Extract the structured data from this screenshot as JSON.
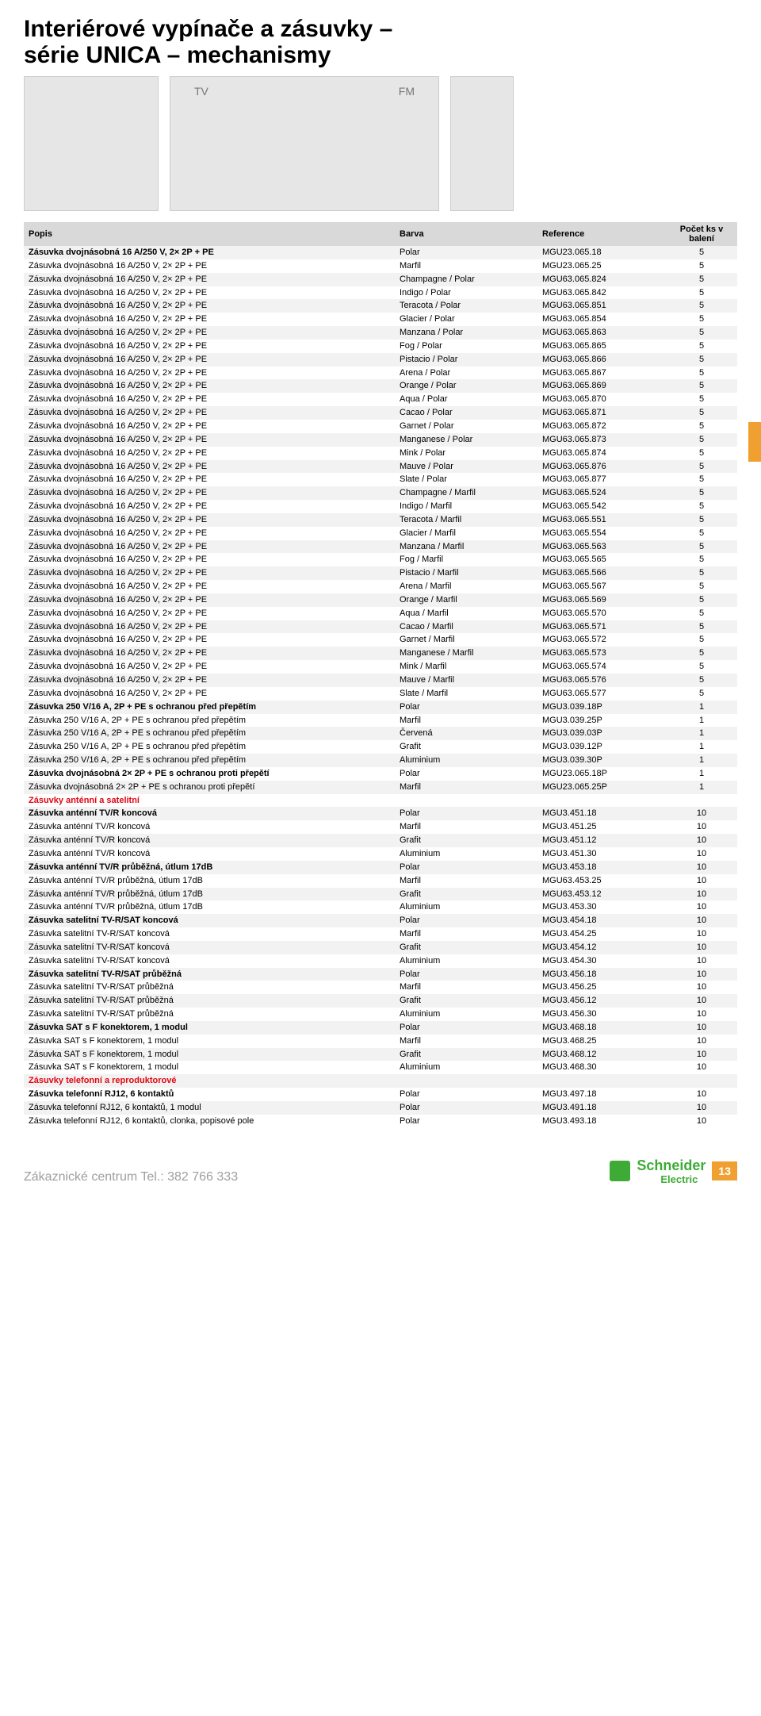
{
  "title_line1": "Interiérové vypínače a zásuvky –",
  "title_line2": "série UNICA – mechanismy",
  "img_labels": {
    "tv": "TV",
    "fm": "FM"
  },
  "table": {
    "headers": {
      "popis": "Popis",
      "barva": "Barva",
      "reference": "Reference",
      "ks": "Počet ks v balení"
    },
    "rows": [
      {
        "p": "Zásuvka dvojnásobná 16 A/250 V, 2× 2P + PE",
        "b": "Polar",
        "r": "MGU23.065.18",
        "k": "5",
        "bold": true
      },
      {
        "p": "Zásuvka dvojnásobná 16 A/250 V, 2× 2P + PE",
        "b": "Marfil",
        "r": "MGU23.065.25",
        "k": "5"
      },
      {
        "p": "Zásuvka dvojnásobná 16 A/250 V, 2× 2P + PE",
        "b": "Champagne / Polar",
        "r": "MGU63.065.824",
        "k": "5"
      },
      {
        "p": "Zásuvka dvojnásobná 16 A/250 V, 2× 2P + PE",
        "b": "Indigo / Polar",
        "r": "MGU63.065.842",
        "k": "5"
      },
      {
        "p": "Zásuvka dvojnásobná 16 A/250 V, 2× 2P + PE",
        "b": "Teracota / Polar",
        "r": "MGU63.065.851",
        "k": "5"
      },
      {
        "p": "Zásuvka dvojnásobná 16 A/250 V, 2× 2P + PE",
        "b": "Glacier / Polar",
        "r": "MGU63.065.854",
        "k": "5"
      },
      {
        "p": "Zásuvka dvojnásobná 16 A/250 V, 2× 2P + PE",
        "b": "Manzana / Polar",
        "r": "MGU63.065.863",
        "k": "5"
      },
      {
        "p": "Zásuvka dvojnásobná 16 A/250 V, 2× 2P + PE",
        "b": "Fog / Polar",
        "r": "MGU63.065.865",
        "k": "5"
      },
      {
        "p": "Zásuvka dvojnásobná 16 A/250 V, 2× 2P + PE",
        "b": "Pistacio / Polar",
        "r": "MGU63.065.866",
        "k": "5"
      },
      {
        "p": "Zásuvka dvojnásobná 16 A/250 V, 2× 2P + PE",
        "b": "Arena / Polar",
        "r": "MGU63.065.867",
        "k": "5"
      },
      {
        "p": "Zásuvka dvojnásobná 16 A/250 V, 2× 2P + PE",
        "b": "Orange / Polar",
        "r": "MGU63.065.869",
        "k": "5"
      },
      {
        "p": "Zásuvka dvojnásobná 16 A/250 V, 2× 2P + PE",
        "b": "Aqua / Polar",
        "r": "MGU63.065.870",
        "k": "5"
      },
      {
        "p": "Zásuvka dvojnásobná 16 A/250 V, 2× 2P + PE",
        "b": "Cacao / Polar",
        "r": "MGU63.065.871",
        "k": "5"
      },
      {
        "p": "Zásuvka dvojnásobná 16 A/250 V, 2× 2P + PE",
        "b": "Garnet / Polar",
        "r": "MGU63.065.872",
        "k": "5"
      },
      {
        "p": "Zásuvka dvojnásobná 16 A/250 V, 2× 2P + PE",
        "b": "Manganese / Polar",
        "r": "MGU63.065.873",
        "k": "5"
      },
      {
        "p": "Zásuvka dvojnásobná 16 A/250 V, 2× 2P + PE",
        "b": "Mink / Polar",
        "r": "MGU63.065.874",
        "k": "5"
      },
      {
        "p": "Zásuvka dvojnásobná 16 A/250 V, 2× 2P + PE",
        "b": "Mauve / Polar",
        "r": "MGU63.065.876",
        "k": "5"
      },
      {
        "p": "Zásuvka dvojnásobná 16 A/250 V, 2× 2P + PE",
        "b": "Slate / Polar",
        "r": "MGU63.065.877",
        "k": "5"
      },
      {
        "p": "Zásuvka dvojnásobná 16 A/250 V, 2× 2P + PE",
        "b": "Champagne / Marfil",
        "r": "MGU63.065.524",
        "k": "5"
      },
      {
        "p": "Zásuvka dvojnásobná 16 A/250 V, 2× 2P + PE",
        "b": "Indigo / Marfil",
        "r": "MGU63.065.542",
        "k": "5"
      },
      {
        "p": "Zásuvka dvojnásobná 16 A/250 V, 2× 2P + PE",
        "b": "Teracota / Marfil",
        "r": "MGU63.065.551",
        "k": "5"
      },
      {
        "p": "Zásuvka dvojnásobná 16 A/250 V, 2× 2P + PE",
        "b": "Glacier / Marfil",
        "r": "MGU63.065.554",
        "k": "5"
      },
      {
        "p": "Zásuvka dvojnásobná 16 A/250 V, 2× 2P + PE",
        "b": "Manzana / Marfil",
        "r": "MGU63.065.563",
        "k": "5"
      },
      {
        "p": "Zásuvka dvojnásobná 16 A/250 V, 2× 2P + PE",
        "b": "Fog / Marfil",
        "r": "MGU63.065.565",
        "k": "5"
      },
      {
        "p": "Zásuvka dvojnásobná 16 A/250 V, 2× 2P + PE",
        "b": "Pistacio / Marfil",
        "r": "MGU63.065.566",
        "k": "5"
      },
      {
        "p": "Zásuvka dvojnásobná 16 A/250 V, 2× 2P + PE",
        "b": "Arena / Marfil",
        "r": "MGU63.065.567",
        "k": "5"
      },
      {
        "p": "Zásuvka dvojnásobná 16 A/250 V, 2× 2P + PE",
        "b": "Orange / Marfil",
        "r": "MGU63.065.569",
        "k": "5"
      },
      {
        "p": "Zásuvka dvojnásobná 16 A/250 V, 2× 2P + PE",
        "b": "Aqua / Marfil",
        "r": "MGU63.065.570",
        "k": "5"
      },
      {
        "p": "Zásuvka dvojnásobná 16 A/250 V, 2× 2P + PE",
        "b": "Cacao / Marfil",
        "r": "MGU63.065.571",
        "k": "5"
      },
      {
        "p": "Zásuvka dvojnásobná 16 A/250 V, 2× 2P + PE",
        "b": "Garnet / Marfil",
        "r": "MGU63.065.572",
        "k": "5"
      },
      {
        "p": "Zásuvka dvojnásobná 16 A/250 V, 2× 2P + PE",
        "b": "Manganese / Marfil",
        "r": "MGU63.065.573",
        "k": "5"
      },
      {
        "p": "Zásuvka dvojnásobná 16 A/250 V, 2× 2P + PE",
        "b": "Mink / Marfil",
        "r": "MGU63.065.574",
        "k": "5"
      },
      {
        "p": "Zásuvka dvojnásobná 16 A/250 V, 2× 2P + PE",
        "b": "Mauve / Marfil",
        "r": "MGU63.065.576",
        "k": "5"
      },
      {
        "p": "Zásuvka dvojnásobná 16 A/250 V, 2× 2P + PE",
        "b": "Slate / Marfil",
        "r": "MGU63.065.577",
        "k": "5"
      },
      {
        "p": "Zásuvka 250 V/16 A, 2P + PE s ochranou před přepětím",
        "b": "Polar",
        "r": "MGU3.039.18P",
        "k": "1",
        "bold": true
      },
      {
        "p": "Zásuvka 250 V/16 A, 2P + PE s ochranou před přepětím",
        "b": "Marfil",
        "r": "MGU3.039.25P",
        "k": "1"
      },
      {
        "p": "Zásuvka 250 V/16 A, 2P + PE s ochranou před přepětím",
        "b": "Červená",
        "r": "MGU3.039.03P",
        "k": "1"
      },
      {
        "p": "Zásuvka 250 V/16 A, 2P + PE s ochranou před přepětím",
        "b": "Grafit",
        "r": "MGU3.039.12P",
        "k": "1"
      },
      {
        "p": "Zásuvka 250 V/16 A, 2P + PE s ochranou před přepětím",
        "b": "Aluminium",
        "r": "MGU3.039.30P",
        "k": "1"
      },
      {
        "p": "Zásuvka dvojnásobná 2× 2P + PE s ochranou proti přepětí",
        "b": "Polar",
        "r": "MGU23.065.18P",
        "k": "1",
        "bold": true
      },
      {
        "p": "Zásuvka dvojnásobná 2× 2P + PE s ochranou proti přepětí",
        "b": "Marfil",
        "r": "MGU23.065.25P",
        "k": "1"
      },
      {
        "p": "Zásuvky anténní a satelitní",
        "b": "",
        "r": "",
        "k": "",
        "red": true
      },
      {
        "p": "Zásuvka anténní TV/R koncová",
        "b": "Polar",
        "r": "MGU3.451.18",
        "k": "10",
        "bold": true
      },
      {
        "p": "Zásuvka anténní TV/R koncová",
        "b": "Marfil",
        "r": "MGU3.451.25",
        "k": "10"
      },
      {
        "p": "Zásuvka anténní TV/R koncová",
        "b": "Grafit",
        "r": "MGU3.451.12",
        "k": "10"
      },
      {
        "p": "Zásuvka anténní TV/R koncová",
        "b": "Aluminium",
        "r": "MGU3.451.30",
        "k": "10"
      },
      {
        "p": "Zásuvka anténní TV/R průběžná, útlum 17dB",
        "b": "Polar",
        "r": "MGU3.453.18",
        "k": "10",
        "bold": true
      },
      {
        "p": "Zásuvka anténní TV/R průběžná, útlum 17dB",
        "b": "Marfil",
        "r": "MGU63.453.25",
        "k": "10"
      },
      {
        "p": "Zásuvka anténní TV/R průběžná, útlum 17dB",
        "b": "Grafit",
        "r": "MGU63.453.12",
        "k": "10"
      },
      {
        "p": "Zásuvka anténní TV/R průběžná, útlum 17dB",
        "b": "Aluminium",
        "r": "MGU3.453.30",
        "k": "10"
      },
      {
        "p": "Zásuvka satelitní TV-R/SAT koncová",
        "b": "Polar",
        "r": "MGU3.454.18",
        "k": "10",
        "bold": true
      },
      {
        "p": "Zásuvka satelitní TV-R/SAT koncová",
        "b": "Marfil",
        "r": "MGU3.454.25",
        "k": "10"
      },
      {
        "p": "Zásuvka satelitní TV-R/SAT koncová",
        "b": "Grafit",
        "r": "MGU3.454.12",
        "k": "10"
      },
      {
        "p": "Zásuvka satelitní TV-R/SAT koncová",
        "b": "Aluminium",
        "r": "MGU3.454.30",
        "k": "10"
      },
      {
        "p": "Zásuvka satelitní TV-R/SAT průběžná",
        "b": "Polar",
        "r": "MGU3.456.18",
        "k": "10",
        "bold": true
      },
      {
        "p": "Zásuvka satelitní TV-R/SAT průběžná",
        "b": "Marfil",
        "r": "MGU3.456.25",
        "k": "10"
      },
      {
        "p": "Zásuvka satelitní TV-R/SAT průběžná",
        "b": "Grafit",
        "r": "MGU3.456.12",
        "k": "10"
      },
      {
        "p": "Zásuvka satelitní TV-R/SAT průběžná",
        "b": "Aluminium",
        "r": "MGU3.456.30",
        "k": "10"
      },
      {
        "p": "Zásuvka SAT s F konektorem, 1 modul",
        "b": "Polar",
        "r": "MGU3.468.18",
        "k": "10",
        "bold": true
      },
      {
        "p": "Zásuvka SAT s F konektorem, 1 modul",
        "b": "Marfil",
        "r": "MGU3.468.25",
        "k": "10"
      },
      {
        "p": "Zásuvka SAT s F konektorem, 1 modul",
        "b": "Grafit",
        "r": "MGU3.468.12",
        "k": "10"
      },
      {
        "p": "Zásuvka SAT s F konektorem, 1 modul",
        "b": "Aluminium",
        "r": "MGU3.468.30",
        "k": "10"
      },
      {
        "p": "Zásuvky telefonní a reproduktorové",
        "b": "",
        "r": "",
        "k": "",
        "red": true
      },
      {
        "p": "Zásuvka telefonní RJ12, 6 kontaktů",
        "b": "Polar",
        "r": "MGU3.497.18",
        "k": "10",
        "bold": true
      },
      {
        "p": "Zásuvka telefonní RJ12, 6 kontaktů, 1 modul",
        "b": "Polar",
        "r": "MGU3.491.18",
        "k": "10"
      },
      {
        "p": "Zásuvka telefonní RJ12, 6 kontaktů, clonka, popisové pole",
        "b": "Polar",
        "r": "MGU3.493.18",
        "k": "10"
      }
    ]
  },
  "footer": {
    "left": "Zákaznické centrum Tel.: 382 766 333",
    "brand": "Schneider",
    "brand_sub": "Electric",
    "page": "13"
  }
}
